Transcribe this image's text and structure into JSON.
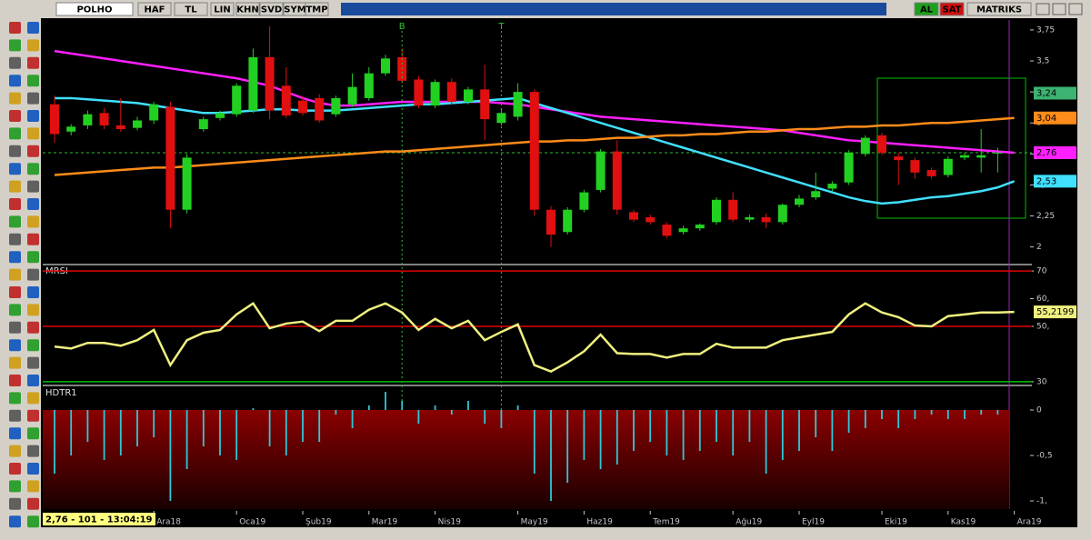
{
  "toolbar": {
    "symbol": "POLHO",
    "buttons": [
      "HAF",
      "TL",
      "LIN",
      "KHN",
      "SVD",
      "SYM",
      "TMP"
    ],
    "trade_buttons": [
      "AL",
      "SAT"
    ],
    "brand": "MATRIKS"
  },
  "status": "2,76 - 101 - 13:04:19",
  "chart_data": [
    {
      "type": "candlestick",
      "up_color": "#22d022",
      "down_color": "#e01010",
      "categories": [
        null,
        null,
        null,
        null,
        null,
        null,
        "Ara18",
        null,
        null,
        null,
        null,
        "Oca19",
        null,
        null,
        null,
        "Şub19",
        null,
        null,
        null,
        "Mar19",
        null,
        null,
        null,
        "Nis19",
        null,
        null,
        null,
        null,
        "May19",
        null,
        null,
        null,
        "Haz19",
        null,
        null,
        null,
        "Tem19",
        null,
        null,
        null,
        null,
        "Ağu19",
        null,
        null,
        null,
        "Eyl19",
        null,
        null,
        null,
        null,
        "Eki19",
        null,
        null,
        null,
        "Kas19",
        null,
        null,
        null,
        "Ara19"
      ],
      "open": [
        3.15,
        2.93,
        2.98,
        3.08,
        2.98,
        2.96,
        3.02,
        3.13,
        2.3,
        2.95,
        3.04,
        3.07,
        3.1,
        3.53,
        3.3,
        3.18,
        3.2,
        3.07,
        3.15,
        3.2,
        3.4,
        3.53,
        3.35,
        3.14,
        3.33,
        3.17,
        3.27,
        3.0,
        3.05,
        3.25,
        2.3,
        2.12,
        2.3,
        2.46,
        2.77,
        2.28,
        2.24,
        2.18,
        2.12,
        2.15,
        2.2,
        2.38,
        2.22,
        2.24,
        2.2,
        2.34,
        2.4,
        2.47,
        2.52,
        2.75,
        2.9,
        2.73,
        2.7,
        2.62,
        2.58,
        2.72,
        2.72,
        2.76,
        null
      ],
      "high": [
        3.22,
        2.99,
        3.1,
        3.12,
        3.2,
        3.05,
        3.17,
        3.17,
        2.75,
        3.05,
        3.1,
        3.32,
        3.6,
        3.78,
        3.45,
        3.22,
        3.23,
        3.22,
        3.4,
        3.45,
        3.55,
        3.6,
        3.38,
        3.35,
        3.36,
        3.29,
        3.47,
        3.12,
        3.32,
        3.27,
        2.33,
        2.32,
        2.46,
        2.79,
        2.86,
        2.3,
        2.26,
        2.2,
        2.17,
        2.19,
        2.4,
        2.44,
        2.26,
        2.27,
        2.35,
        2.42,
        2.6,
        2.53,
        2.78,
        2.9,
        2.92,
        2.76,
        2.72,
        2.64,
        2.73,
        2.76,
        2.95,
        2.8,
        null
      ],
      "low": [
        2.84,
        2.9,
        2.95,
        2.95,
        2.93,
        2.94,
        2.99,
        2.15,
        2.27,
        2.93,
        3.02,
        3.05,
        3.08,
        3.03,
        3.04,
        3.06,
        3.0,
        3.05,
        3.13,
        3.18,
        3.38,
        3.32,
        3.12,
        3.12,
        3.15,
        3.15,
        2.86,
        2.98,
        3.02,
        2.25,
        2.0,
        2.1,
        2.28,
        2.44,
        2.26,
        2.2,
        2.18,
        2.07,
        2.1,
        2.13,
        2.18,
        2.2,
        2.2,
        2.15,
        2.18,
        2.32,
        2.38,
        2.45,
        2.5,
        2.73,
        2.74,
        2.5,
        2.55,
        2.55,
        2.56,
        2.7,
        2.6,
        2.6,
        null
      ],
      "close": [
        2.91,
        2.97,
        3.07,
        2.98,
        2.95,
        3.02,
        3.15,
        2.3,
        2.72,
        3.03,
        3.08,
        3.3,
        3.53,
        3.1,
        3.06,
        3.08,
        3.02,
        3.2,
        3.29,
        3.4,
        3.52,
        3.34,
        3.14,
        3.33,
        3.17,
        3.27,
        3.03,
        3.08,
        3.25,
        2.3,
        2.1,
        2.3,
        2.44,
        2.77,
        2.3,
        2.22,
        2.2,
        2.09,
        2.15,
        2.18,
        2.38,
        2.22,
        2.24,
        2.2,
        2.34,
        2.39,
        2.45,
        2.51,
        2.76,
        2.88,
        2.76,
        2.7,
        2.6,
        2.57,
        2.71,
        2.74,
        2.74,
        2.76,
        null
      ],
      "series": [
        {
          "color": "#ff20ff",
          "last_label": "2,76",
          "values": [
            3.58,
            3.56,
            3.54,
            3.52,
            3.5,
            3.48,
            3.46,
            3.44,
            3.42,
            3.4,
            3.38,
            3.36,
            3.33,
            3.3,
            3.25,
            3.2,
            3.16,
            3.14,
            3.14,
            3.15,
            3.16,
            3.17,
            3.17,
            3.17,
            3.17,
            3.17,
            3.17,
            3.16,
            3.15,
            3.13,
            3.11,
            3.09,
            3.07,
            3.05,
            3.04,
            3.03,
            3.02,
            3.01,
            3.0,
            2.99,
            2.98,
            2.97,
            2.96,
            2.95,
            2.94,
            2.92,
            2.9,
            2.88,
            2.86,
            2.85,
            2.84,
            2.83,
            2.82,
            2.81,
            2.8,
            2.79,
            2.78,
            2.77,
            2.76
          ]
        },
        {
          "color": "#40e0ff",
          "last_label": "2,53",
          "values": [
            3.2,
            3.2,
            3.19,
            3.18,
            3.17,
            3.16,
            3.14,
            3.12,
            3.1,
            3.08,
            3.08,
            3.09,
            3.1,
            3.11,
            3.11,
            3.1,
            3.1,
            3.1,
            3.11,
            3.12,
            3.13,
            3.14,
            3.15,
            3.15,
            3.16,
            3.17,
            3.18,
            3.19,
            3.2,
            3.16,
            3.12,
            3.08,
            3.04,
            3.0,
            2.96,
            2.92,
            2.88,
            2.84,
            2.8,
            2.76,
            2.72,
            2.68,
            2.64,
            2.6,
            2.56,
            2.52,
            2.48,
            2.44,
            2.4,
            2.37,
            2.35,
            2.36,
            2.38,
            2.4,
            2.41,
            2.43,
            2.45,
            2.48,
            2.53
          ]
        },
        {
          "color": "#ff8c1a",
          "last_label": "3,04",
          "values": [
            2.58,
            2.59,
            2.6,
            2.61,
            2.62,
            2.63,
            2.64,
            2.64,
            2.65,
            2.66,
            2.67,
            2.68,
            2.69,
            2.7,
            2.71,
            2.72,
            2.73,
            2.74,
            2.75,
            2.76,
            2.77,
            2.77,
            2.78,
            2.79,
            2.8,
            2.81,
            2.82,
            2.83,
            2.84,
            2.85,
            2.85,
            2.86,
            2.86,
            2.87,
            2.88,
            2.88,
            2.89,
            2.9,
            2.9,
            2.91,
            2.91,
            2.92,
            2.93,
            2.93,
            2.94,
            2.95,
            2.95,
            2.96,
            2.97,
            2.97,
            2.98,
            2.98,
            2.99,
            3.0,
            3.0,
            3.01,
            3.02,
            3.03,
            3.04
          ]
        }
      ],
      "price_markers": [
        {
          "value": 3.24,
          "label": "3,24",
          "color": "#3cb371"
        },
        {
          "value": 2.76,
          "label": "2,76",
          "color": "#e8e8e8",
          "dashed": true
        }
      ],
      "signals": [
        {
          "at": 21,
          "label": "B"
        },
        {
          "at": 27,
          "label": "T"
        }
      ],
      "ylim": [
        1.88,
        3.83
      ],
      "yticks": [
        2,
        {
          "value": 2.25,
          "label": "2,25"
        },
        {
          "value": 2.5,
          "label": "2,5"
        },
        {
          "value": 2.75,
          "label": "2,75"
        },
        3,
        {
          "value": 3.25,
          "label": "3,25"
        },
        {
          "value": 3.5,
          "label": "3,5"
        },
        {
          "value": 3.75,
          "label": "3,75"
        }
      ]
    },
    {
      "type": "line",
      "title": "MRSI",
      "series": [
        {
          "color": "#f0f080",
          "last_label": "55,2199",
          "values": [
            42.7,
            42,
            44,
            44,
            43,
            45,
            48.7,
            36,
            45,
            47.7,
            48.7,
            54.3,
            58.3,
            49.3,
            51,
            51.7,
            48.3,
            52,
            52,
            56,
            58.3,
            55,
            48.7,
            52.7,
            49.3,
            52,
            45,
            48,
            50.7,
            36,
            33.7,
            37,
            41,
            47,
            40.3,
            40,
            40,
            38.7,
            40,
            40,
            43.7,
            42.3,
            42.3,
            42.3,
            45,
            46,
            47,
            48,
            54.3,
            58.3,
            55,
            53.3,
            50.3,
            50,
            53.7,
            54.3,
            55,
            55,
            55.2199
          ]
        }
      ],
      "levels": [
        {
          "value": 70,
          "color": "#e00000"
        },
        {
          "value": 50,
          "color": "#e00000"
        },
        {
          "value": 30,
          "color": "#00c000"
        }
      ],
      "ylim": [
        29.3,
        72
      ],
      "yticks": [
        30,
        {
          "value": 50,
          "label": "50,"
        },
        {
          "value": 60,
          "label": "60,"
        },
        70
      ]
    },
    {
      "type": "bar",
      "title": "HDTR1",
      "color": "#30c8d8",
      "values": [
        -0.7,
        -0.5,
        -0.35,
        -0.55,
        -0.5,
        -0.4,
        -0.3,
        -1.0,
        -0.65,
        -0.4,
        -0.5,
        -0.55,
        0.02,
        -0.4,
        -0.5,
        -0.35,
        -0.35,
        -0.05,
        -0.2,
        0.05,
        0.2,
        0.1,
        -0.15,
        0.05,
        -0.05,
        0.1,
        -0.15,
        -0.2,
        0.05,
        -0.7,
        -1.0,
        -0.8,
        -0.55,
        -0.65,
        -0.6,
        -0.45,
        -0.35,
        -0.5,
        -0.55,
        -0.45,
        -0.35,
        -0.5,
        -0.35,
        -0.7,
        -0.55,
        -0.45,
        -0.3,
        -0.45,
        -0.25,
        -0.2,
        -0.1,
        -0.2,
        -0.1,
        -0.05,
        -0.1,
        -0.1,
        -0.05,
        -0.05,
        null
      ],
      "ylim": [
        -1.09,
        0.25
      ],
      "yticks": [
        {
          "value": -1,
          "label": "-1,"
        },
        {
          "value": -0.5,
          "label": "-0,5"
        },
        0
      ]
    }
  ]
}
